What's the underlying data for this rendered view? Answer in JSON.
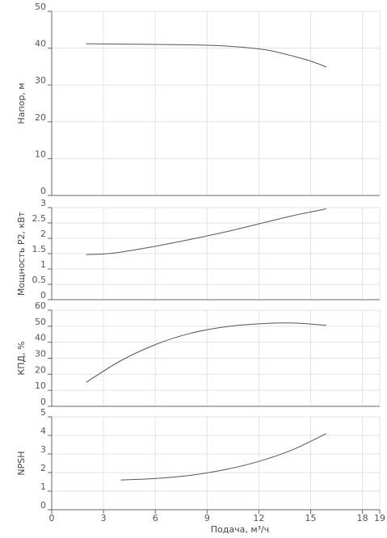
{
  "chart_data": [
    {
      "type": "line",
      "title": "",
      "xlabel": "",
      "ylabel": "Напор, м",
      "xlim": [
        0,
        19
      ],
      "ylim": [
        0,
        50
      ],
      "yticks": [
        0,
        10,
        20,
        30,
        40,
        50
      ],
      "grid": true,
      "series": [
        {
          "x": [
            2,
            4,
            6,
            8,
            10,
            12,
            13,
            14,
            15,
            15.9
          ],
          "y": [
            41.2,
            41.1,
            41.0,
            40.9,
            40.6,
            39.8,
            39.0,
            37.8,
            36.5,
            34.9
          ]
        }
      ]
    },
    {
      "type": "line",
      "title": "",
      "xlabel": "",
      "ylabel": "Мощность P2, кВт",
      "xlim": [
        0,
        19
      ],
      "ylim": [
        0,
        3
      ],
      "yticks": [
        0,
        0.5,
        1,
        1.5,
        2,
        2.5,
        3
      ],
      "ytick_labels": [
        "0",
        "0.5",
        "1",
        "1.5",
        "2",
        "2.5",
        "3"
      ],
      "grid": true,
      "series": [
        {
          "x": [
            2,
            3,
            4,
            6,
            8,
            10,
            12,
            14,
            15.9
          ],
          "y": [
            1.47,
            1.49,
            1.55,
            1.74,
            1.96,
            2.2,
            2.47,
            2.74,
            2.96
          ]
        }
      ]
    },
    {
      "type": "line",
      "title": "",
      "xlabel": "",
      "ylabel": "КПД, %",
      "xlim": [
        0,
        19
      ],
      "ylim": [
        0,
        60
      ],
      "yticks": [
        0,
        10,
        20,
        30,
        40,
        50,
        60
      ],
      "grid": true,
      "series": [
        {
          "x": [
            2,
            4,
            6,
            8,
            10,
            12,
            14,
            15.9
          ],
          "y": [
            15,
            28.5,
            38.5,
            45.5,
            49.5,
            51.5,
            52,
            50.5
          ]
        }
      ]
    },
    {
      "type": "line",
      "title": "",
      "xlabel": "Подача, м³/ч",
      "ylabel": "NPSH",
      "xlim": [
        0,
        19
      ],
      "ylim": [
        0,
        5
      ],
      "yticks": [
        0,
        1,
        2,
        3,
        4,
        5
      ],
      "xticks": [
        0,
        3,
        6,
        9,
        12,
        15,
        18,
        19
      ],
      "grid": true,
      "series": [
        {
          "x": [
            4,
            6,
            8,
            10,
            12,
            14,
            15.9
          ],
          "y": [
            1.6,
            1.68,
            1.85,
            2.15,
            2.6,
            3.25,
            4.1
          ]
        }
      ]
    }
  ],
  "colors": {
    "line": "#555555",
    "grid": "#e3e3e3",
    "axis": "#666666",
    "text": "#555555"
  }
}
